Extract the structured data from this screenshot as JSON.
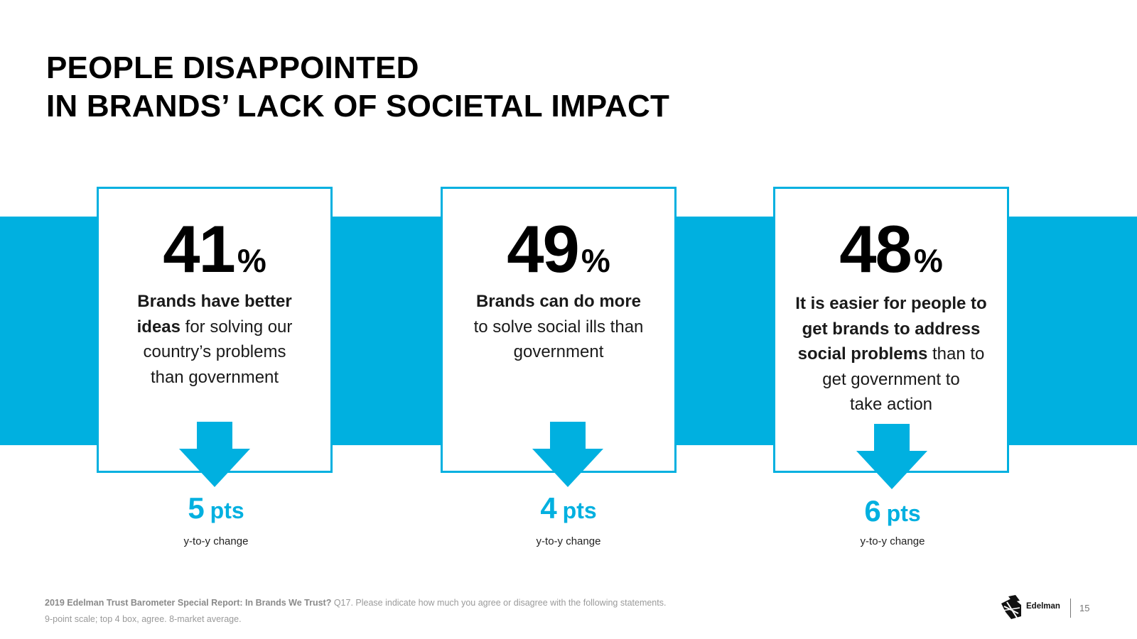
{
  "title": {
    "line1": "PEOPLE DISAPPOINTED",
    "line2": "IN BRANDS’ LACK OF SOCIETAL IMPACT"
  },
  "colors": {
    "accent": "#00b0e0",
    "text": "#000000",
    "muted": "#9a9a9a"
  },
  "cards": [
    {
      "value": "41",
      "unit": "%",
      "desc_line1_bold": "Brands have better",
      "desc_line2_bold": "ideas",
      "desc_line2_rest": " for solving our",
      "desc_line3": "country’s problems",
      "desc_line4": "than government",
      "change_value": "5",
      "change_unit": "pts",
      "change_caption": "y-to-y change",
      "arrow_icon": "down-arrow-icon"
    },
    {
      "value": "49",
      "unit": "%",
      "desc_line1_bold": "Brands can do more",
      "desc_line2": "to solve social ills than",
      "desc_line3": "government",
      "change_value": "4",
      "change_unit": "pts",
      "change_caption": "y-to-y change",
      "arrow_icon": "down-arrow-icon"
    },
    {
      "value": "48",
      "unit": "%",
      "desc_line1_bold": "It is easier for people to",
      "desc_line2_bold": "get brands to address",
      "desc_line3_bold": "social problems",
      "desc_line3_rest": " than to",
      "desc_line4": "get government to",
      "desc_line5": "take action",
      "change_value": "6",
      "change_unit": "pts",
      "change_caption": "y-to-y change",
      "arrow_icon": "down-arrow-icon"
    }
  ],
  "footer": {
    "source_bold": "2019 Edelman Trust Barometer Special Report: In Brands We Trust?",
    "source_rest": " Q17. Please indicate how much you agree or disagree with the following statements.",
    "source_line2": "9-point scale; top 4 box, agree. 8-market average.",
    "logo_text": "Edelman",
    "page_number": "15"
  }
}
